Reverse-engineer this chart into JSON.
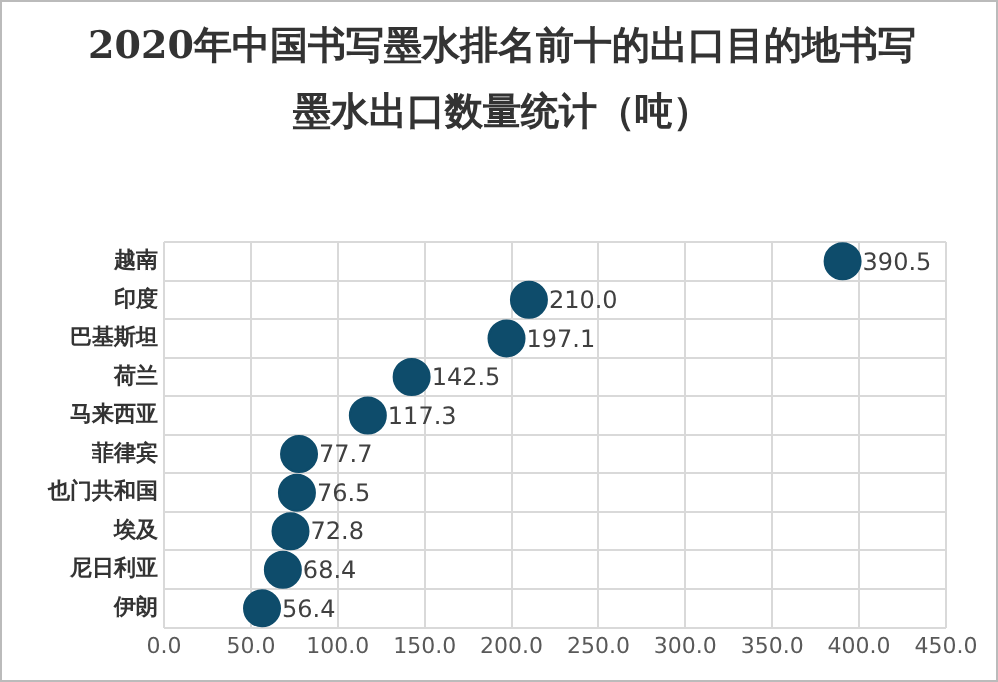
{
  "chart_data": {
    "type": "scatter",
    "orientation": "horizontal",
    "title": "2020年中国书写墨水排名前十的出口目的地书写墨水出口数量统计（吨）",
    "categories": [
      "越南",
      "印度",
      "巴基斯坦",
      "荷兰",
      "马来西亚",
      "菲律宾",
      "也门共和国",
      "埃及",
      "尼日利亚",
      "伊朗"
    ],
    "values": [
      390.5,
      210.0,
      197.1,
      142.5,
      117.3,
      77.7,
      76.5,
      72.8,
      68.4,
      56.4
    ],
    "value_labels": [
      "390.5",
      "210.0",
      "197.1",
      "142.5",
      "117.3",
      "77.7",
      "76.5",
      "72.8",
      "68.4",
      "56.4"
    ],
    "color": "#0e4c6b",
    "marker": "circle",
    "grid": true,
    "legend": false,
    "xlim": [
      0,
      450
    ],
    "xticks": [
      {
        "value": 0,
        "label": "0.0"
      },
      {
        "value": 50,
        "label": "50.0"
      },
      {
        "value": 100,
        "label": "100.0"
      },
      {
        "value": 150,
        "label": "150.0"
      },
      {
        "value": 200,
        "label": "200.0"
      },
      {
        "value": 250,
        "label": "250.0"
      },
      {
        "value": 300,
        "label": "300.0"
      },
      {
        "value": 350,
        "label": "350.0"
      },
      {
        "value": 400,
        "label": "400.0"
      },
      {
        "value": 450,
        "label": "450.0"
      }
    ]
  }
}
